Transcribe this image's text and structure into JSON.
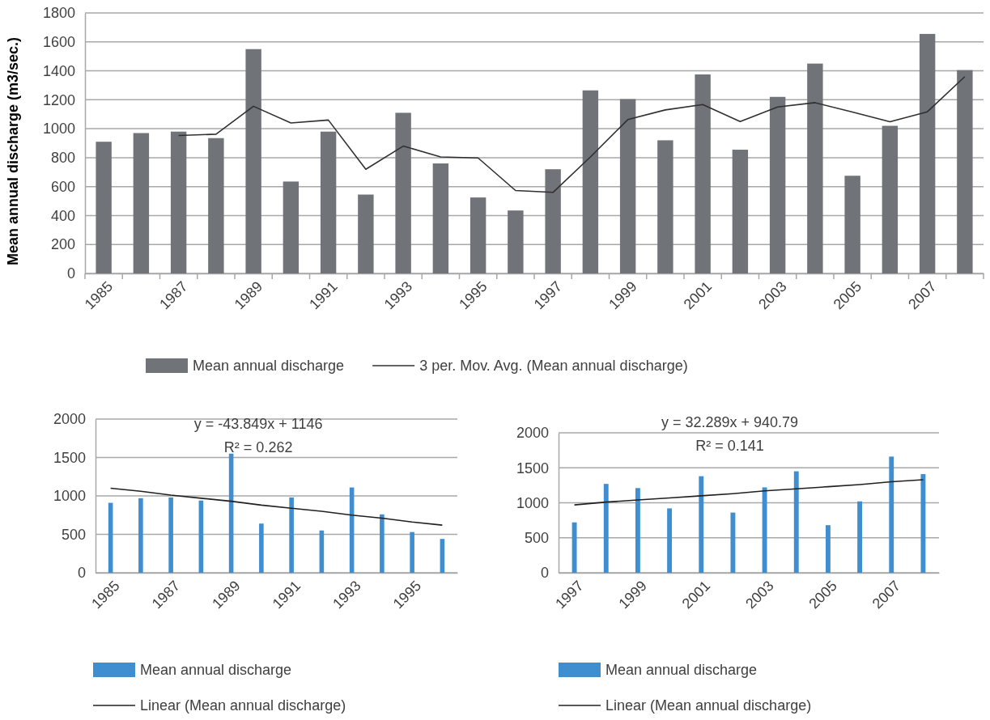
{
  "chart_data": [
    {
      "type": "bar",
      "ylabel": "Mean annual discharge  (m3/sec.)",
      "categories": [
        "1985",
        null,
        "1987",
        null,
        "1989",
        null,
        "1991",
        null,
        "1993",
        null,
        "1995",
        null,
        "1997",
        null,
        "1999",
        null,
        "2001",
        null,
        "2003",
        null,
        "2005",
        null,
        "2007",
        null
      ],
      "series": [
        {
          "name": "Mean annual discharge",
          "color": "#707478",
          "values": [
            910,
            970,
            980,
            935,
            1550,
            635,
            980,
            545,
            1110,
            760,
            525,
            435,
            720,
            1265,
            1205,
            920,
            1375,
            855,
            1220,
            1450,
            675,
            1020,
            1655,
            1405
          ]
        },
        {
          "name": "3 per. Mov. Avg. (Mean annual discharge)",
          "type": "line",
          "color": "#303030",
          "values": [
            null,
            null,
            953,
            962,
            1155,
            1040,
            1060,
            720,
            880,
            805,
            798,
            573,
            560,
            805,
            1063,
            1130,
            1167,
            1050,
            1150,
            1180,
            1115,
            1048,
            1117,
            1360
          ]
        }
      ],
      "ylim": [
        0,
        1800
      ],
      "yticks": [
        0,
        200,
        400,
        600,
        800,
        1000,
        1200,
        1400,
        1600,
        1800
      ],
      "grid": "y",
      "legend": "bottom"
    },
    {
      "type": "bar",
      "categories": [
        "1985",
        null,
        "1987",
        null,
        "1989",
        null,
        "1991",
        null,
        "1993",
        null,
        "1995",
        null
      ],
      "series": [
        {
          "name": "Mean annual discharge",
          "color": "#3e8ed0",
          "values": [
            910,
            970,
            980,
            940,
            1550,
            640,
            980,
            550,
            1110,
            760,
            530,
            440
          ]
        },
        {
          "name": "Linear (Mean annual discharge)",
          "type": "line",
          "color": "#202020",
          "values": [
            1100,
            1060,
            1010,
            970,
            930,
            880,
            840,
            800,
            750,
            710,
            660,
            620
          ]
        }
      ],
      "ylim": [
        0,
        2000
      ],
      "yticks": [
        0,
        500,
        1000,
        1500,
        2000
      ],
      "grid": "y",
      "legend": "bottom",
      "annotations": [
        "y = -43.849x + 1146",
        "R² = 0.262"
      ]
    },
    {
      "type": "bar",
      "categories": [
        "1997",
        null,
        "1999",
        null,
        "2001",
        null,
        "2003",
        null,
        "2005",
        null,
        "2007",
        null
      ],
      "series": [
        {
          "name": "Mean annual discharge",
          "color": "#3e8ed0",
          "values": [
            720,
            1270,
            1210,
            920,
            1380,
            860,
            1220,
            1450,
            680,
            1020,
            1660,
            1410
          ]
        },
        {
          "name": "Linear (Mean annual discharge)",
          "type": "line",
          "color": "#202020",
          "values": [
            970,
            1010,
            1040,
            1070,
            1100,
            1130,
            1170,
            1200,
            1230,
            1260,
            1300,
            1330
          ]
        }
      ],
      "ylim": [
        0,
        2000
      ],
      "yticks": [
        0,
        500,
        1000,
        1500,
        2000
      ],
      "grid": "y",
      "legend": "bottom",
      "annotations": [
        "y = 32.289x + 940.79",
        "R² = 0.141"
      ]
    }
  ]
}
